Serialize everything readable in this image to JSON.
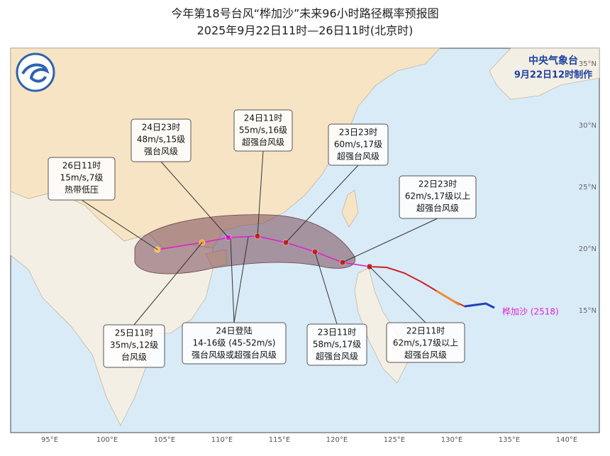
{
  "header": {
    "title": "今年第18号台风“桦加沙”未来96小时路径概率预报图",
    "subtitle": "2025年9月22日11时—26日11时(北京时)"
  },
  "agency": {
    "name": "中央气象台",
    "issued": "9月22日12时制作"
  },
  "typhoon_label": "桦加沙 (2518)",
  "annotations": [
    {
      "lines": [
        "26日11时",
        "15m/s,7级",
        "热带低压"
      ]
    },
    {
      "lines": [
        "24日23时",
        "48m/s,15级",
        "强台风级"
      ]
    },
    {
      "lines": [
        "24日11时",
        "55m/s,16级",
        "超强台风级"
      ]
    },
    {
      "lines": [
        "23日23时",
        "60m/s,17级",
        "超强台风级"
      ]
    },
    {
      "lines": [
        "22日23时",
        "62m/s,17级以上",
        "超强台风级"
      ]
    },
    {
      "lines": [
        "25日11时",
        "35m/s,12级",
        "台风级"
      ]
    },
    {
      "lines": [
        "24日登陆",
        "14-16级 (45-52m/s)",
        "强台风级或超强台风级"
      ]
    },
    {
      "lines": [
        "23日11时",
        "58m/s,17级",
        "超强台风级"
      ]
    },
    {
      "lines": [
        "22日11时",
        "62m/s,17级以上",
        "超强台风级"
      ]
    }
  ],
  "longitude_labels": [
    "95°E",
    "100°E",
    "105°E",
    "110°E",
    "115°E",
    "120°E",
    "125°E",
    "130°E",
    "135°E",
    "140°E"
  ],
  "latitude_labels": [
    "35°N",
    "30°N",
    "25°N",
    "20°N",
    "15°N"
  ]
}
